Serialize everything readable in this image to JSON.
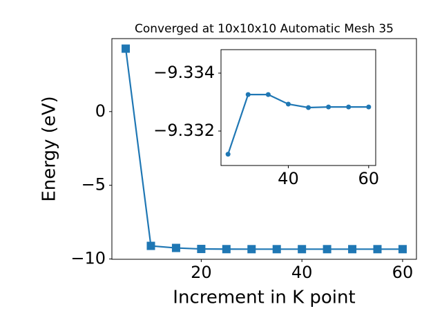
{
  "chart_data": [
    {
      "type": "line",
      "title": "Converged at 10x10x10 Automatic Mesh 35",
      "xlabel": "Increment in K point",
      "ylabel": "Energy (eV)",
      "x": [
        5,
        10,
        15,
        20,
        25,
        30,
        35,
        40,
        45,
        50,
        55,
        60
      ],
      "series": [
        {
          "color": "#1f77b4",
          "marker": "square",
          "values": [
            4.27,
            -9.11,
            -9.25,
            -9.32,
            -9.3312,
            -9.3333,
            -9.3333,
            -9.3329,
            -9.3328,
            -9.3328,
            -9.3328,
            -9.3328
          ]
        }
      ],
      "xlim": [
        2.25,
        62.75
      ],
      "ylim": [
        -10.02,
        4.95
      ],
      "xticks": [
        20,
        40,
        60
      ],
      "yticks": [
        {
          "value": -10,
          "label": "−10"
        },
        {
          "value": -5,
          "label": "−5"
        },
        0
      ]
    },
    {
      "type": "line",
      "x": [
        25,
        30,
        35,
        40,
        45,
        50,
        55,
        60
      ],
      "series": [
        {
          "color": "#1f77b4",
          "marker": "circle",
          "values": [
            -9.3312,
            -9.33326,
            -9.33326,
            -9.33293,
            -9.33281,
            -9.33283,
            -9.33283,
            -9.33283
          ]
        }
      ],
      "xlim": [
        23.25,
        61.75
      ],
      "ylim": [
        -9.33081,
        -9.33481
      ],
      "xticks": [
        40,
        60
      ],
      "yticks": [
        {
          "value": -9.334,
          "label": "−9.334"
        },
        {
          "value": -9.332,
          "label": "−9.332"
        }
      ]
    }
  ]
}
